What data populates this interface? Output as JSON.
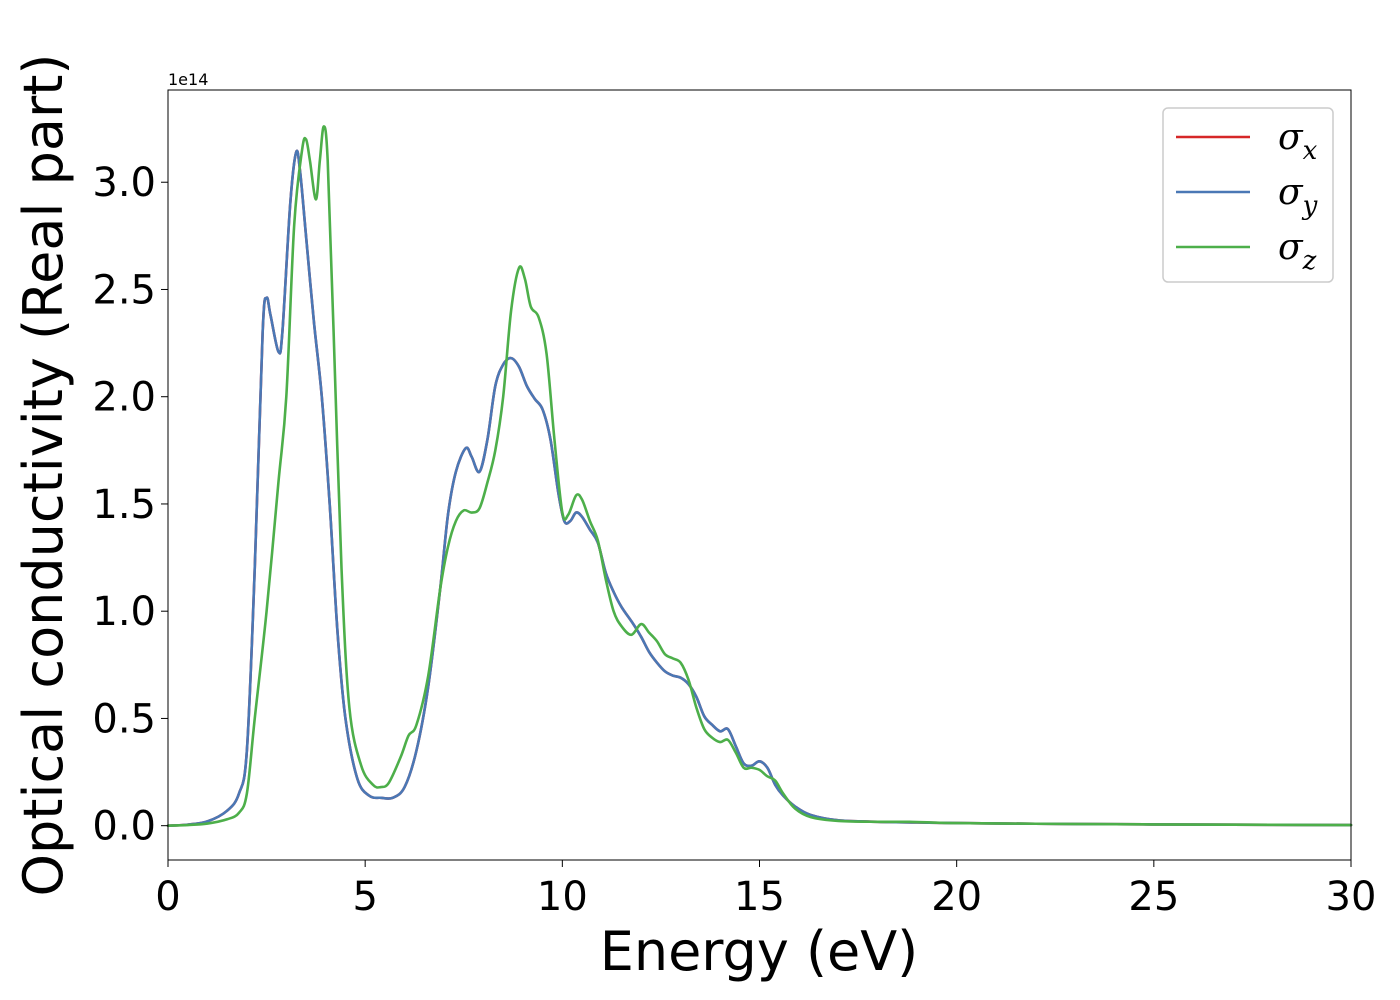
{
  "chart_data": {
    "type": "line",
    "xlabel": "Energy (eV)",
    "ylabel": "Optical conductivity (Real part)",
    "y_offset_label": "1e14",
    "xlim": [
      0,
      30
    ],
    "ylim": [
      -0.16,
      3.43
    ],
    "xticks": [
      0,
      5,
      10,
      15,
      20,
      25,
      30
    ],
    "xtick_labels": [
      "0",
      "5",
      "10",
      "15",
      "20",
      "25",
      "30"
    ],
    "yticks": [
      0.0,
      0.5,
      1.0,
      1.5,
      2.0,
      2.5,
      3.0
    ],
    "ytick_labels": [
      "0.0",
      "0.5",
      "1.0",
      "1.5",
      "2.0",
      "2.5",
      "3.0"
    ],
    "grid": false,
    "legend_position": "top-right",
    "series": [
      {
        "name": "σx",
        "legend_base": "σ",
        "legend_sub": "x",
        "color": "#d62728",
        "points": [
          [
            0,
            0
          ],
          [
            0.5,
            0.005
          ],
          [
            1.0,
            0.02
          ],
          [
            1.5,
            0.07
          ],
          [
            1.8,
            0.15
          ],
          [
            2.0,
            0.35
          ],
          [
            2.2,
            1.2
          ],
          [
            2.4,
            2.3
          ],
          [
            2.5,
            2.46
          ],
          [
            2.6,
            2.38
          ],
          [
            2.8,
            2.21
          ],
          [
            2.9,
            2.3
          ],
          [
            3.1,
            2.9
          ],
          [
            3.25,
            3.14
          ],
          [
            3.35,
            3.05
          ],
          [
            3.5,
            2.75
          ],
          [
            3.7,
            2.35
          ],
          [
            3.9,
            2.0
          ],
          [
            4.1,
            1.5
          ],
          [
            4.3,
            0.9
          ],
          [
            4.5,
            0.5
          ],
          [
            4.8,
            0.22
          ],
          [
            5.1,
            0.14
          ],
          [
            5.4,
            0.13
          ],
          [
            5.7,
            0.13
          ],
          [
            6.0,
            0.18
          ],
          [
            6.3,
            0.35
          ],
          [
            6.6,
            0.65
          ],
          [
            6.9,
            1.1
          ],
          [
            7.1,
            1.45
          ],
          [
            7.3,
            1.65
          ],
          [
            7.55,
            1.76
          ],
          [
            7.7,
            1.72
          ],
          [
            7.9,
            1.65
          ],
          [
            8.1,
            1.8
          ],
          [
            8.3,
            2.05
          ],
          [
            8.5,
            2.15
          ],
          [
            8.7,
            2.18
          ],
          [
            8.9,
            2.14
          ],
          [
            9.1,
            2.05
          ],
          [
            9.3,
            1.99
          ],
          [
            9.5,
            1.94
          ],
          [
            9.7,
            1.8
          ],
          [
            9.9,
            1.55
          ],
          [
            10.05,
            1.42
          ],
          [
            10.2,
            1.42
          ],
          [
            10.35,
            1.46
          ],
          [
            10.5,
            1.44
          ],
          [
            10.7,
            1.38
          ],
          [
            10.9,
            1.32
          ],
          [
            11.1,
            1.18
          ],
          [
            11.3,
            1.09
          ],
          [
            11.5,
            1.02
          ],
          [
            11.8,
            0.94
          ],
          [
            12.0,
            0.88
          ],
          [
            12.2,
            0.81
          ],
          [
            12.4,
            0.76
          ],
          [
            12.6,
            0.72
          ],
          [
            12.8,
            0.7
          ],
          [
            13.0,
            0.69
          ],
          [
            13.2,
            0.66
          ],
          [
            13.4,
            0.6
          ],
          [
            13.6,
            0.51
          ],
          [
            13.8,
            0.47
          ],
          [
            14.0,
            0.44
          ],
          [
            14.2,
            0.45
          ],
          [
            14.4,
            0.37
          ],
          [
            14.6,
            0.29
          ],
          [
            14.8,
            0.28
          ],
          [
            15.0,
            0.3
          ],
          [
            15.2,
            0.27
          ],
          [
            15.4,
            0.19
          ],
          [
            15.6,
            0.14
          ],
          [
            15.9,
            0.09
          ],
          [
            16.3,
            0.05
          ],
          [
            17.0,
            0.025
          ],
          [
            18.0,
            0.018
          ],
          [
            19.0,
            0.015
          ],
          [
            20.0,
            0.012
          ],
          [
            22.0,
            0.009
          ],
          [
            24.0,
            0.007
          ],
          [
            26.0,
            0.005
          ],
          [
            28.0,
            0.004
          ],
          [
            30.0,
            0.003
          ]
        ]
      },
      {
        "name": "σy",
        "legend_base": "σ",
        "legend_sub": "y",
        "color": "#4a78b5",
        "points": [
          [
            0,
            0
          ],
          [
            0.5,
            0.005
          ],
          [
            1.0,
            0.02
          ],
          [
            1.5,
            0.07
          ],
          [
            1.8,
            0.15
          ],
          [
            2.0,
            0.35
          ],
          [
            2.2,
            1.2
          ],
          [
            2.4,
            2.3
          ],
          [
            2.5,
            2.46
          ],
          [
            2.6,
            2.38
          ],
          [
            2.8,
            2.21
          ],
          [
            2.9,
            2.3
          ],
          [
            3.1,
            2.9
          ],
          [
            3.25,
            3.14
          ],
          [
            3.35,
            3.05
          ],
          [
            3.5,
            2.75
          ],
          [
            3.7,
            2.35
          ],
          [
            3.9,
            2.0
          ],
          [
            4.1,
            1.5
          ],
          [
            4.3,
            0.9
          ],
          [
            4.5,
            0.5
          ],
          [
            4.8,
            0.22
          ],
          [
            5.1,
            0.14
          ],
          [
            5.4,
            0.13
          ],
          [
            5.7,
            0.13
          ],
          [
            6.0,
            0.18
          ],
          [
            6.3,
            0.35
          ],
          [
            6.6,
            0.65
          ],
          [
            6.9,
            1.1
          ],
          [
            7.1,
            1.45
          ],
          [
            7.3,
            1.65
          ],
          [
            7.55,
            1.76
          ],
          [
            7.7,
            1.72
          ],
          [
            7.9,
            1.65
          ],
          [
            8.1,
            1.8
          ],
          [
            8.3,
            2.05
          ],
          [
            8.5,
            2.15
          ],
          [
            8.7,
            2.18
          ],
          [
            8.9,
            2.14
          ],
          [
            9.1,
            2.05
          ],
          [
            9.3,
            1.99
          ],
          [
            9.5,
            1.94
          ],
          [
            9.7,
            1.8
          ],
          [
            9.9,
            1.55
          ],
          [
            10.05,
            1.42
          ],
          [
            10.2,
            1.42
          ],
          [
            10.35,
            1.46
          ],
          [
            10.5,
            1.44
          ],
          [
            10.7,
            1.38
          ],
          [
            10.9,
            1.32
          ],
          [
            11.1,
            1.18
          ],
          [
            11.3,
            1.09
          ],
          [
            11.5,
            1.02
          ],
          [
            11.8,
            0.94
          ],
          [
            12.0,
            0.88
          ],
          [
            12.2,
            0.81
          ],
          [
            12.4,
            0.76
          ],
          [
            12.6,
            0.72
          ],
          [
            12.8,
            0.7
          ],
          [
            13.0,
            0.69
          ],
          [
            13.2,
            0.66
          ],
          [
            13.4,
            0.6
          ],
          [
            13.6,
            0.51
          ],
          [
            13.8,
            0.47
          ],
          [
            14.0,
            0.44
          ],
          [
            14.2,
            0.45
          ],
          [
            14.4,
            0.37
          ],
          [
            14.6,
            0.29
          ],
          [
            14.8,
            0.28
          ],
          [
            15.0,
            0.3
          ],
          [
            15.2,
            0.27
          ],
          [
            15.4,
            0.19
          ],
          [
            15.6,
            0.14
          ],
          [
            15.9,
            0.09
          ],
          [
            16.3,
            0.05
          ],
          [
            17.0,
            0.025
          ],
          [
            18.0,
            0.018
          ],
          [
            19.0,
            0.015
          ],
          [
            20.0,
            0.012
          ],
          [
            22.0,
            0.009
          ],
          [
            24.0,
            0.007
          ],
          [
            26.0,
            0.005
          ],
          [
            28.0,
            0.004
          ],
          [
            30.0,
            0.003
          ]
        ]
      },
      {
        "name": "σz",
        "legend_base": "σ",
        "legend_sub": "z",
        "color": "#4daf4a",
        "points": [
          [
            0,
            0
          ],
          [
            0.5,
            0.003
          ],
          [
            1.0,
            0.01
          ],
          [
            1.5,
            0.03
          ],
          [
            1.8,
            0.06
          ],
          [
            2.0,
            0.15
          ],
          [
            2.2,
            0.5
          ],
          [
            2.5,
            1.0
          ],
          [
            2.8,
            1.6
          ],
          [
            3.0,
            2.0
          ],
          [
            3.2,
            2.8
          ],
          [
            3.4,
            3.15
          ],
          [
            3.5,
            3.2
          ],
          [
            3.6,
            3.1
          ],
          [
            3.75,
            2.92
          ],
          [
            3.85,
            3.1
          ],
          [
            3.95,
            3.26
          ],
          [
            4.05,
            3.1
          ],
          [
            4.2,
            2.3
          ],
          [
            4.4,
            1.2
          ],
          [
            4.6,
            0.55
          ],
          [
            4.9,
            0.28
          ],
          [
            5.2,
            0.19
          ],
          [
            5.4,
            0.18
          ],
          [
            5.6,
            0.2
          ],
          [
            5.9,
            0.32
          ],
          [
            6.1,
            0.42
          ],
          [
            6.3,
            0.47
          ],
          [
            6.6,
            0.7
          ],
          [
            6.9,
            1.1
          ],
          [
            7.1,
            1.3
          ],
          [
            7.3,
            1.42
          ],
          [
            7.5,
            1.47
          ],
          [
            7.7,
            1.46
          ],
          [
            7.9,
            1.48
          ],
          [
            8.1,
            1.6
          ],
          [
            8.3,
            1.75
          ],
          [
            8.5,
            2.0
          ],
          [
            8.7,
            2.4
          ],
          [
            8.9,
            2.6
          ],
          [
            9.05,
            2.55
          ],
          [
            9.2,
            2.42
          ],
          [
            9.4,
            2.37
          ],
          [
            9.6,
            2.2
          ],
          [
            9.8,
            1.8
          ],
          [
            10.0,
            1.46
          ],
          [
            10.15,
            1.45
          ],
          [
            10.35,
            1.54
          ],
          [
            10.5,
            1.52
          ],
          [
            10.7,
            1.42
          ],
          [
            10.9,
            1.33
          ],
          [
            11.1,
            1.15
          ],
          [
            11.3,
            1.0
          ],
          [
            11.5,
            0.93
          ],
          [
            11.75,
            0.89
          ],
          [
            12.0,
            0.94
          ],
          [
            12.2,
            0.9
          ],
          [
            12.4,
            0.86
          ],
          [
            12.6,
            0.8
          ],
          [
            12.8,
            0.78
          ],
          [
            13.0,
            0.76
          ],
          [
            13.2,
            0.68
          ],
          [
            13.4,
            0.55
          ],
          [
            13.6,
            0.45
          ],
          [
            13.8,
            0.41
          ],
          [
            14.0,
            0.39
          ],
          [
            14.2,
            0.4
          ],
          [
            14.4,
            0.34
          ],
          [
            14.6,
            0.27
          ],
          [
            14.8,
            0.27
          ],
          [
            15.0,
            0.26
          ],
          [
            15.2,
            0.23
          ],
          [
            15.4,
            0.21
          ],
          [
            15.6,
            0.15
          ],
          [
            15.9,
            0.08
          ],
          [
            16.3,
            0.04
          ],
          [
            17.0,
            0.022
          ],
          [
            18.0,
            0.018
          ],
          [
            18.8,
            0.018
          ],
          [
            19.5,
            0.014
          ],
          [
            20.0,
            0.012
          ],
          [
            22.0,
            0.009
          ],
          [
            24.0,
            0.007
          ],
          [
            26.0,
            0.005
          ],
          [
            28.0,
            0.004
          ],
          [
            30.0,
            0.003
          ]
        ]
      }
    ]
  }
}
